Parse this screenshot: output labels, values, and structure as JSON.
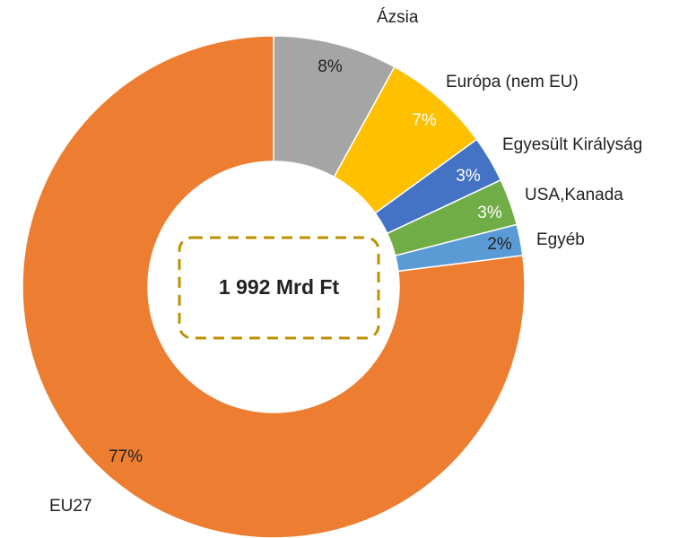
{
  "chart_data": {
    "type": "donut",
    "center_label": "1 992 Mrd Ft",
    "categories": [
      "Ázsia",
      "Európa (nem EU)",
      "Egyesült Királyság",
      "USA,Kanada",
      "Egyéb",
      "EU27"
    ],
    "values": [
      8,
      7,
      3,
      3,
      2,
      77
    ],
    "value_labels": [
      "8%",
      "7%",
      "3%",
      "3%",
      "2%",
      "77%"
    ],
    "colors": [
      "#a5a5a5",
      "#ffc000",
      "#4472c4",
      "#70ad47",
      "#5b9bd5",
      "#ed7d31"
    ]
  }
}
